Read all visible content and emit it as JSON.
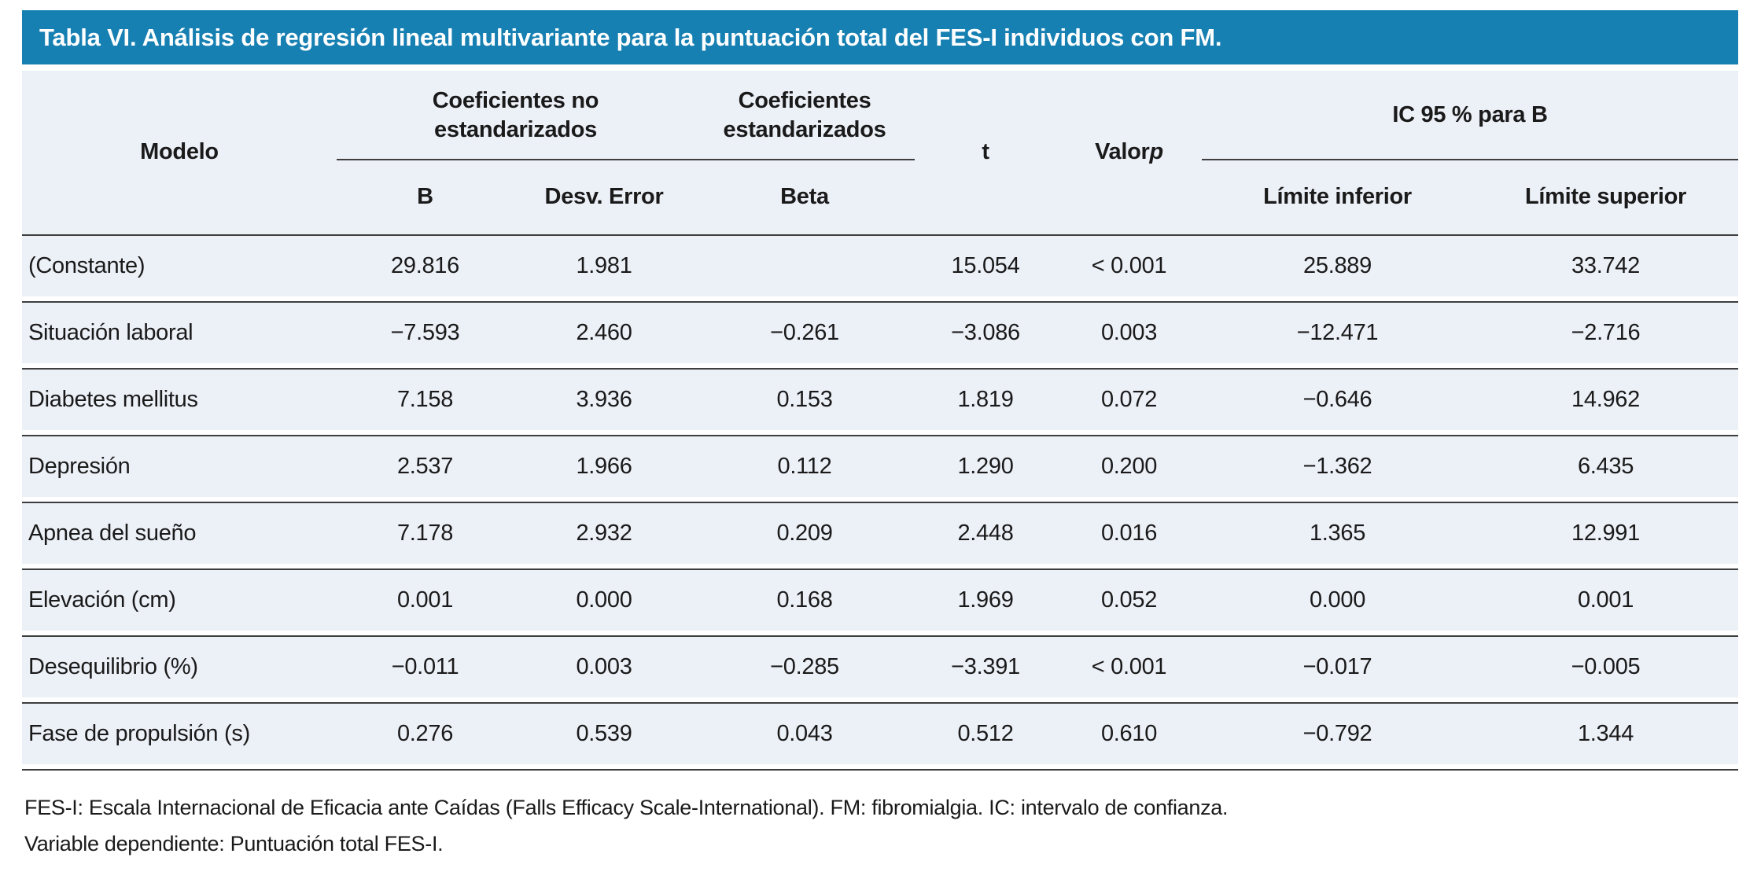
{
  "title": "Tabla VI. Análisis de regresión lineal multivariante para la puntuación total del FES-I individuos con FM.",
  "colors": {
    "accent_blue": "#1780b2",
    "row_background": "#ecf0f7",
    "rule_line": "#3e3e3e",
    "title_text": "#ffffff",
    "body_text": "#1a1a1a"
  },
  "table": {
    "group_headers": {
      "modelo": "Modelo",
      "coef_no_estandarizados": "Coeficientes no\nestandarizados",
      "coef_estandarizados": "Coeficientes\nestandarizados",
      "t": "t",
      "valor_p_prefix": "Valor ",
      "valor_p_symbol": "p",
      "ic_95": "IC 95 % para B"
    },
    "sub_headers": {
      "b": "B",
      "desv_error": "Desv. Error",
      "beta": "Beta",
      "limite_inferior": "Límite inferior",
      "limite_superior": "Límite superior"
    },
    "rows": [
      {
        "modelo": "(Constante)",
        "b": "29.816",
        "desv_error": "1.981",
        "beta": "",
        "t": "15.054",
        "valor_p": "< 0.001",
        "limite_inferior": "25.889",
        "limite_superior": "33.742"
      },
      {
        "modelo": "Situación laboral",
        "b": "−7.593",
        "desv_error": "2.460",
        "beta": "−0.261",
        "t": "−3.086",
        "valor_p": "0.003",
        "limite_inferior": "−12.471",
        "limite_superior": "−2.716"
      },
      {
        "modelo": "Diabetes mellitus",
        "b": "7.158",
        "desv_error": "3.936",
        "beta": "0.153",
        "t": "1.819",
        "valor_p": "0.072",
        "limite_inferior": "−0.646",
        "limite_superior": "14.962"
      },
      {
        "modelo": "Depresión",
        "b": "2.537",
        "desv_error": "1.966",
        "beta": "0.112",
        "t": "1.290",
        "valor_p": "0.200",
        "limite_inferior": "−1.362",
        "limite_superior": "6.435"
      },
      {
        "modelo": "Apnea del sueño",
        "b": "7.178",
        "desv_error": "2.932",
        "beta": "0.209",
        "t": "2.448",
        "valor_p": "0.016",
        "limite_inferior": "1.365",
        "limite_superior": "12.991"
      },
      {
        "modelo": "Elevación (cm)",
        "b": "0.001",
        "desv_error": "0.000",
        "beta": "0.168",
        "t": "1.969",
        "valor_p": "0.052",
        "limite_inferior": "0.000",
        "limite_superior": "0.001"
      },
      {
        "modelo": "Desequilibrio (%)",
        "b": "−0.011",
        "desv_error": "0.003",
        "beta": "−0.285",
        "t": "−3.391",
        "valor_p": "< 0.001",
        "limite_inferior": "−0.017",
        "limite_superior": "−0.005"
      },
      {
        "modelo": "Fase de propulsión (s)",
        "b": "0.276",
        "desv_error": "0.539",
        "beta": "0.043",
        "t": "0.512",
        "valor_p": "0.610",
        "limite_inferior": "−0.792",
        "limite_superior": "1.344"
      }
    ]
  },
  "footnotes": {
    "line1": "FES-I: Escala Internacional de Eficacia ante Caídas (Falls Efficacy Scale-International). FM: fibromialgia. IC: intervalo de confianza.",
    "line2": "Variable dependiente: Puntuación total FES-I."
  }
}
